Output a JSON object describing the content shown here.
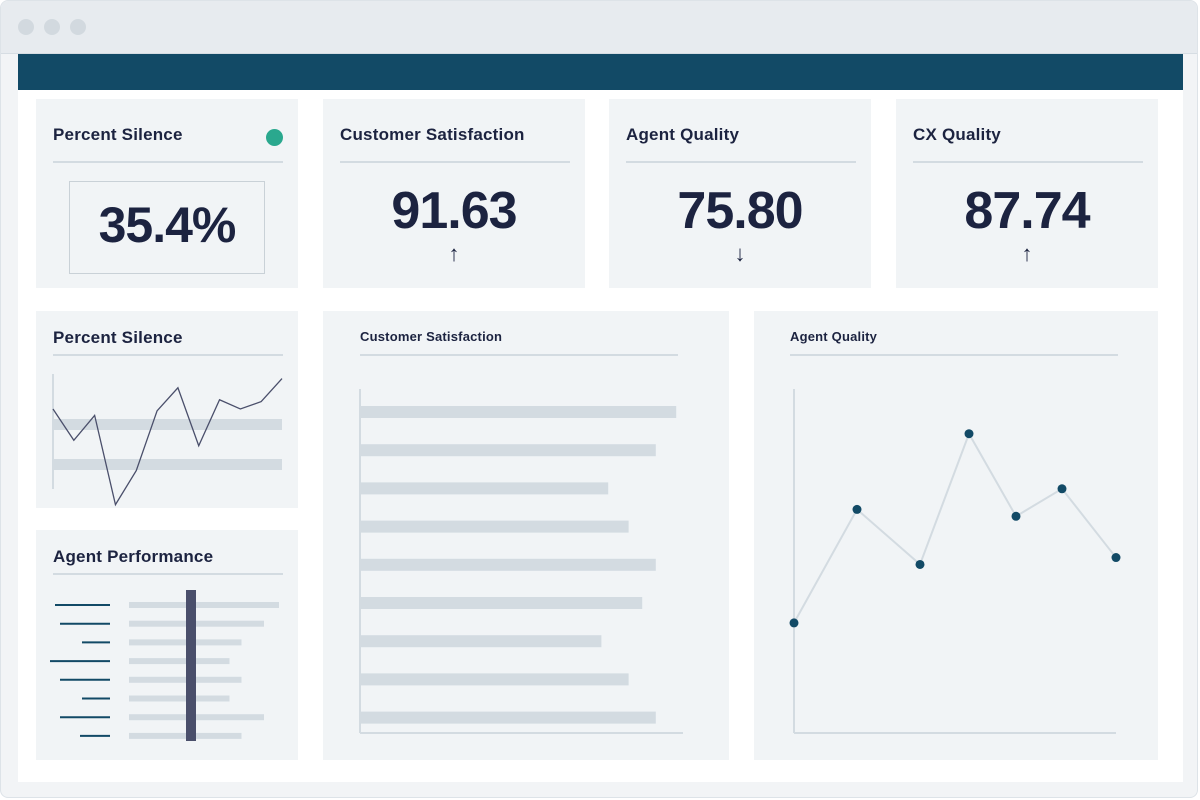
{
  "window": {
    "controls": [
      "close-dot",
      "minimize-dot",
      "zoom-dot"
    ]
  },
  "kpis": {
    "percent_silence": {
      "title": "Percent Silence",
      "value": "35.4%",
      "status_color": "#2aa88e"
    },
    "customer_satisfaction": {
      "title": "Customer Satisfaction",
      "value": "91.63",
      "trend": "↑"
    },
    "agent_quality": {
      "title": "Agent Quality",
      "value": "75.80",
      "trend": "↓"
    },
    "cx_quality": {
      "title": "CX Quality",
      "value": "87.74",
      "trend": "↑"
    }
  },
  "panels": {
    "percent_silence_chart": {
      "title": "Percent Silence",
      "line_values": [
        0.62,
        0.28,
        0.55,
        -0.42,
        -0.05,
        0.6,
        0.85,
        0.22,
        0.72,
        0.62,
        0.7,
        0.95
      ]
    },
    "agent_performance": {
      "title": "Agent Performance",
      "left_lines": [
        0.55,
        0.5,
        0.28,
        0.6,
        0.5,
        0.28,
        0.5,
        0.3
      ],
      "right_bars": [
        1.0,
        0.9,
        0.75,
        0.67,
        0.75,
        0.67,
        0.9,
        0.75
      ]
    },
    "customer_satisfaction_chart": {
      "title": "Customer Satisfaction",
      "bars": [
        0.93,
        0.87,
        0.73,
        0.79,
        0.87,
        0.83,
        0.71,
        0.79,
        0.87
      ]
    },
    "agent_quality_chart": {
      "title": "Agent Quality",
      "points": [
        0.32,
        0.65,
        0.49,
        0.87,
        0.63,
        0.71,
        0.51
      ]
    }
  },
  "colors": {
    "topbar": "#124a66",
    "navy": "#1c2340",
    "bar_grey": "#d3dbe1",
    "point": "#124a66",
    "indicator_bar": "#4a4f6b"
  }
}
